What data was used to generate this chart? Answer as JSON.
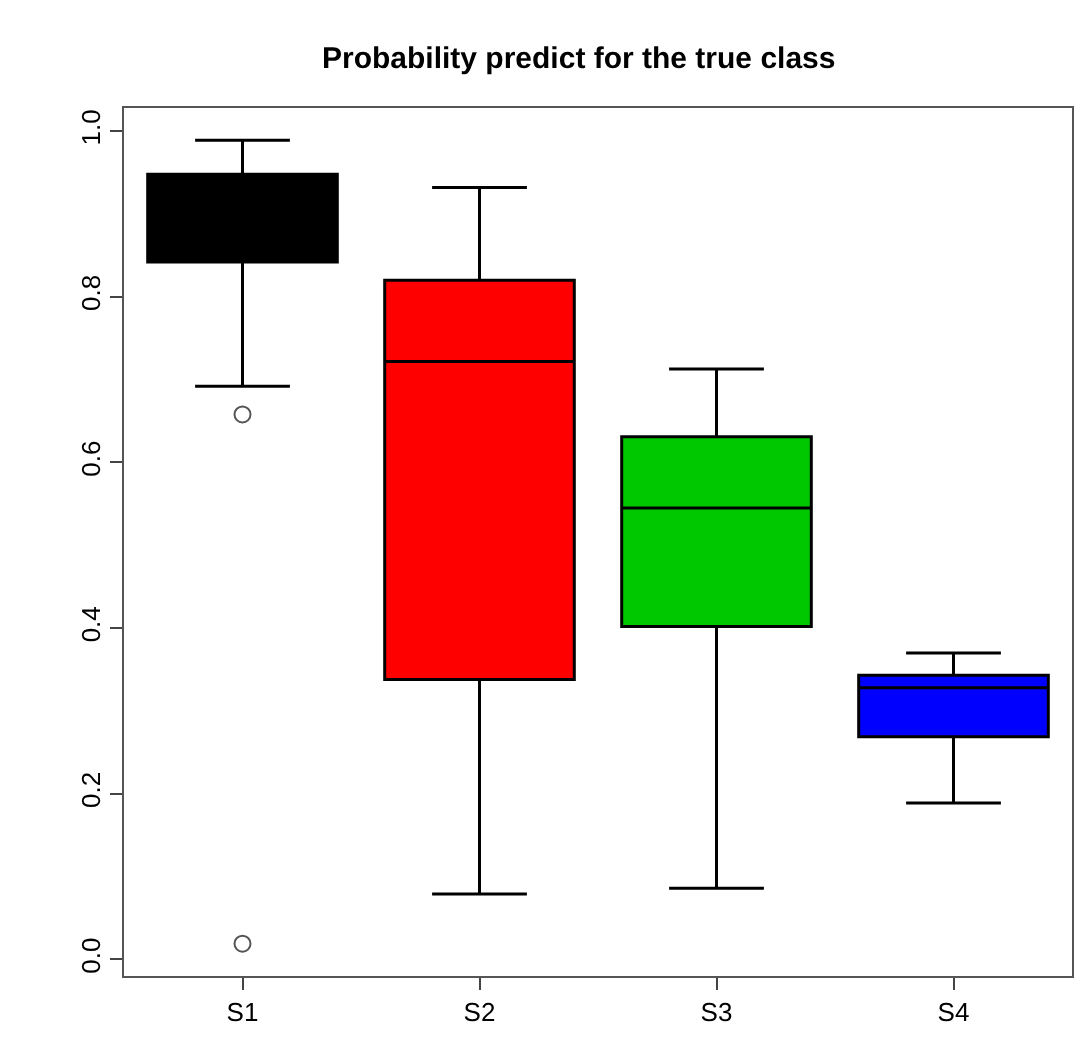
{
  "chart_data": {
    "type": "box",
    "title": "Probability predict for the true class",
    "categories": [
      "S1",
      "S2",
      "S3",
      "S4"
    ],
    "colors": [
      "#000000",
      "#ff0000",
      "#00c800",
      "#0000ff"
    ],
    "boxes": [
      {
        "low": 0.692,
        "q1": 0.842,
        "median": 0.9,
        "q3": 0.948,
        "high": 0.989,
        "outliers": [
          0.658,
          0.019
        ]
      },
      {
        "low": 0.079,
        "q1": 0.338,
        "median": 0.722,
        "q3": 0.82,
        "high": 0.932
      },
      {
        "low": 0.086,
        "q1": 0.402,
        "median": 0.545,
        "q3": 0.631,
        "high": 0.713
      },
      {
        "low": 0.189,
        "q1": 0.269,
        "median": 0.328,
        "q3": 0.343,
        "high": 0.37
      }
    ],
    "ylim": [
      -0.02,
      1.028
    ],
    "yticks": [
      {
        "value": 0,
        "label": "0.0"
      },
      0.2,
      0.4,
      0.6,
      0.8,
      {
        "value": 1,
        "label": "1.0"
      }
    ],
    "grid": false,
    "marker": "circle"
  }
}
